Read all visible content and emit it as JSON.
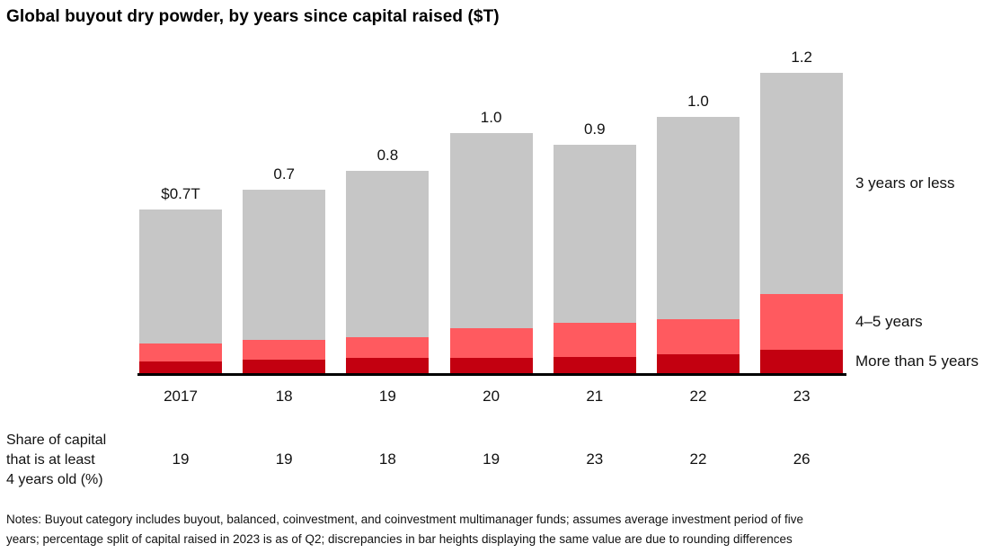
{
  "chart_data": {
    "type": "bar",
    "stacked": true,
    "title": "Global buyout dry powder, by years since capital raised ($T)",
    "unit": "$T",
    "categories": [
      "2017",
      "18",
      "19",
      "20",
      "21",
      "22",
      "23"
    ],
    "total_labels": [
      "$0.7T",
      "0.7",
      "0.8",
      "1.0",
      "0.9",
      "1.0",
      "1.2"
    ],
    "totals": [
      0.7,
      0.7,
      0.8,
      1.0,
      0.9,
      1.0,
      1.2
    ],
    "stack_order": "bottom-to-top",
    "series": [
      {
        "name": "More than 5 years",
        "color": "#c30010",
        "values": [
          0.047,
          0.054,
          0.061,
          0.061,
          0.065,
          0.076,
          0.094
        ]
      },
      {
        "name": "4–5 years",
        "color": "#ff5a5f",
        "values": [
          0.072,
          0.079,
          0.083,
          0.119,
          0.137,
          0.14,
          0.223
        ]
      },
      {
        "name": "3 years or less",
        "color": "#c6c6c6",
        "values": [
          0.536,
          0.601,
          0.665,
          0.781,
          0.712,
          0.809,
          0.885
        ]
      }
    ],
    "legend_position": "right",
    "ylim": [
      0,
      1.25
    ],
    "gridlines": false,
    "axis_color": "#000000"
  },
  "share_row": {
    "label_lines": [
      "Share of capital",
      "that is at least",
      "4 years old (%)"
    ],
    "values": [
      "19",
      "19",
      "18",
      "19",
      "23",
      "22",
      "26"
    ]
  },
  "notes_lines": [
    "Notes: Buyout category includes buyout, balanced, coinvestment, and coinvestment multimanager funds; assumes average investment period of five",
    "years; percentage split of capital raised in 2023 is as of Q2; discrepancies in bar heights displaying the same value are due to rounding differences"
  ]
}
